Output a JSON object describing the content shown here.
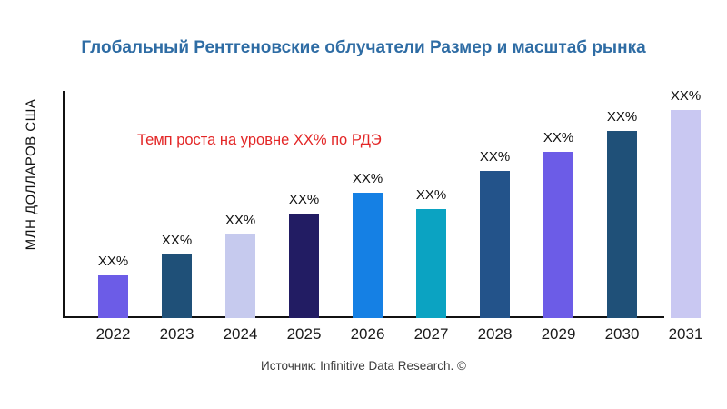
{
  "title": "Глобальный Рентгеновские облучатели Размер и масштаб рынка",
  "y_axis_label": "МЛН ДОЛЛАРОВ США",
  "annotation": {
    "text": "Темп роста на уровне XX% по РДЭ",
    "color": "#e32626"
  },
  "source": "Источник: Infinitive Data Research. ©",
  "colors": {
    "title": "#2e6ca4",
    "axis": "#111111",
    "value_label": "#111111"
  },
  "chart_data": {
    "type": "bar",
    "title": "Глобальный Рентгеновские облучатели Размер и масштаб рынка",
    "xlabel": "",
    "ylabel": "МЛН ДОЛЛАРОВ США",
    "grid": false,
    "legend": null,
    "categories": [
      "2022",
      "2023",
      "2024",
      "2025",
      "2026",
      "2027",
      "2028",
      "2029",
      "2030",
      "2031"
    ],
    "value_labels": [
      "XX%",
      "XX%",
      "XX%",
      "XX%",
      "XX%",
      "XX%",
      "XX%",
      "XX%",
      "XX%",
      "XX%"
    ],
    "relative_heights_pct": [
      18.8,
      28.0,
      36.8,
      46.0,
      55.2,
      48.0,
      64.8,
      73.2,
      82.4,
      91.6
    ],
    "bar_colors": [
      "#6c5ce7",
      "#1f5078",
      "#c6caee",
      "#221c63",
      "#1580e4",
      "#0ba3c2",
      "#23538a",
      "#6c5ce7",
      "#1f5078",
      "#c9c8f2"
    ]
  }
}
